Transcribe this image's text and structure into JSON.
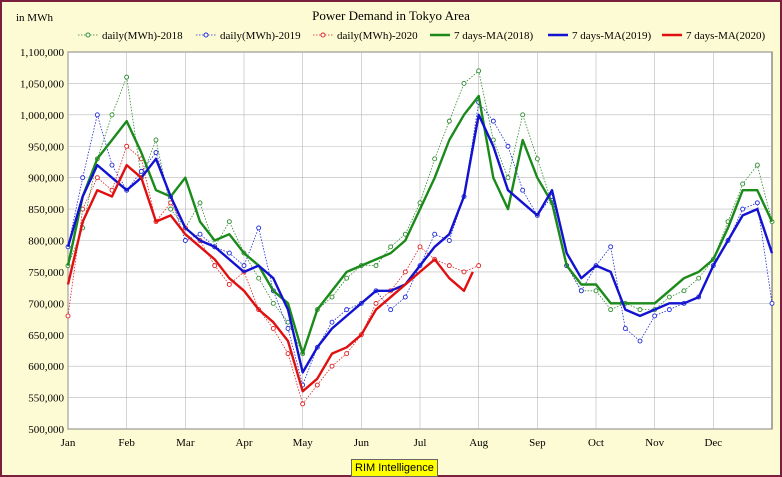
{
  "chart_data": {
    "type": "line",
    "title": "Power Demand in Tokyo Area",
    "ylabel": "in MWh",
    "xlabel": "",
    "ylim": [
      500000,
      1100000
    ],
    "yticks": [
      500000,
      550000,
      600000,
      650000,
      700000,
      750000,
      800000,
      850000,
      900000,
      950000,
      1000000,
      1050000,
      1100000
    ],
    "ytick_labels": [
      "500,000",
      "550,000",
      "600,000",
      "650,000",
      "700,000",
      "750,000",
      "800,000",
      "850,000",
      "900,000",
      "950,000",
      "1,000,000",
      "1,050,000",
      "1,100,000"
    ],
    "categories": [
      "Jan",
      "Feb",
      "Mar",
      "Apr",
      "May",
      "Jun",
      "Jul",
      "Aug",
      "Sep",
      "Oct",
      "Nov",
      "Dec"
    ],
    "grid": true,
    "legend_placement": "top",
    "series_note_x_unit": "month (1 = Jan 1, 13 = Dec 31)",
    "series": [
      {
        "name": "daily(MWh)-2018",
        "style": "daily",
        "color": "#2e8b2e",
        "x": [
          1.0,
          1.25,
          1.5,
          1.75,
          2.0,
          2.25,
          2.5,
          2.75,
          3.0,
          3.25,
          3.5,
          3.75,
          4.0,
          4.25,
          4.5,
          4.75,
          5.0,
          5.25,
          5.5,
          5.75,
          6.0,
          6.25,
          6.5,
          6.75,
          7.0,
          7.25,
          7.5,
          7.75,
          8.0,
          8.25,
          8.5,
          8.75,
          9.0,
          9.25,
          9.5,
          9.75,
          10.0,
          10.25,
          10.5,
          10.75,
          11.0,
          11.25,
          11.5,
          11.75,
          12.0,
          12.25,
          12.5,
          12.75,
          13.0
        ],
        "values": [
          760000,
          820000,
          930000,
          1000000,
          1060000,
          900000,
          960000,
          850000,
          820000,
          860000,
          790000,
          830000,
          780000,
          740000,
          700000,
          670000,
          620000,
          690000,
          710000,
          740000,
          760000,
          760000,
          790000,
          810000,
          860000,
          930000,
          990000,
          1050000,
          1070000,
          960000,
          900000,
          1000000,
          930000,
          860000,
          760000,
          720000,
          720000,
          690000,
          700000,
          690000,
          690000,
          710000,
          720000,
          740000,
          770000,
          830000,
          890000,
          920000,
          830000
        ]
      },
      {
        "name": "daily(MWh)-2019",
        "style": "daily",
        "color": "#1f2ad8",
        "x": [
          1.0,
          1.25,
          1.5,
          1.75,
          2.0,
          2.25,
          2.5,
          2.75,
          3.0,
          3.25,
          3.5,
          3.75,
          4.0,
          4.25,
          4.5,
          4.75,
          5.0,
          5.25,
          5.5,
          5.75,
          6.0,
          6.25,
          6.5,
          6.75,
          7.0,
          7.25,
          7.5,
          7.75,
          8.0,
          8.25,
          8.5,
          8.75,
          9.0,
          9.25,
          9.5,
          9.75,
          10.0,
          10.25,
          10.5,
          10.75,
          11.0,
          11.25,
          11.5,
          11.75,
          12.0,
          12.25,
          12.5,
          12.75,
          13.0
        ],
        "values": [
          790000,
          900000,
          1000000,
          920000,
          880000,
          910000,
          940000,
          870000,
          800000,
          810000,
          790000,
          780000,
          760000,
          820000,
          720000,
          660000,
          570000,
          630000,
          670000,
          690000,
          700000,
          720000,
          690000,
          710000,
          760000,
          810000,
          800000,
          870000,
          1020000,
          990000,
          950000,
          880000,
          840000,
          870000,
          760000,
          720000,
          760000,
          790000,
          660000,
          640000,
          680000,
          690000,
          700000,
          710000,
          760000,
          800000,
          850000,
          860000,
          700000
        ]
      },
      {
        "name": "daily(MWh)-2020",
        "style": "daily",
        "color": "#e02020",
        "x": [
          1.0,
          1.25,
          1.5,
          1.75,
          2.0,
          2.25,
          2.5,
          2.75,
          3.0,
          3.25,
          3.5,
          3.75,
          4.0,
          4.25,
          4.5,
          4.75,
          5.0,
          5.25,
          5.5,
          5.75,
          6.0,
          6.25,
          6.5,
          6.75,
          7.0,
          7.25,
          7.5,
          7.75,
          8.0
        ],
        "values": [
          680000,
          850000,
          900000,
          880000,
          950000,
          930000,
          830000,
          860000,
          820000,
          800000,
          760000,
          730000,
          750000,
          690000,
          660000,
          620000,
          540000,
          570000,
          600000,
          620000,
          650000,
          700000,
          720000,
          750000,
          790000,
          770000,
          760000,
          750000,
          760000
        ]
      },
      {
        "name": "7 days-MA(2018)",
        "style": "ma",
        "color": "#1a8a1a",
        "x": [
          1.0,
          1.25,
          1.5,
          1.75,
          2.0,
          2.25,
          2.5,
          2.75,
          3.0,
          3.25,
          3.5,
          3.75,
          4.0,
          4.25,
          4.5,
          4.75,
          5.0,
          5.25,
          5.5,
          5.75,
          6.0,
          6.25,
          6.5,
          6.75,
          7.0,
          7.25,
          7.5,
          7.75,
          8.0,
          8.25,
          8.5,
          8.75,
          9.0,
          9.25,
          9.5,
          9.75,
          10.0,
          10.25,
          10.5,
          10.75,
          11.0,
          11.25,
          11.5,
          11.75,
          12.0,
          12.25,
          12.5,
          12.75,
          13.0
        ],
        "values": [
          760000,
          870000,
          930000,
          960000,
          990000,
          940000,
          880000,
          870000,
          900000,
          830000,
          800000,
          810000,
          780000,
          760000,
          720000,
          700000,
          620000,
          690000,
          720000,
          750000,
          760000,
          770000,
          780000,
          800000,
          850000,
          900000,
          960000,
          1000000,
          1030000,
          900000,
          850000,
          960000,
          900000,
          860000,
          760000,
          730000,
          730000,
          700000,
          700000,
          700000,
          700000,
          720000,
          740000,
          750000,
          770000,
          820000,
          880000,
          880000,
          830000
        ]
      },
      {
        "name": "7 days-MA(2019)",
        "style": "ma",
        "color": "#1212d0",
        "x": [
          1.0,
          1.25,
          1.5,
          1.75,
          2.0,
          2.25,
          2.5,
          2.75,
          3.0,
          3.25,
          3.5,
          3.75,
          4.0,
          4.25,
          4.5,
          4.75,
          5.0,
          5.25,
          5.5,
          5.75,
          6.0,
          6.25,
          6.5,
          6.75,
          7.0,
          7.25,
          7.5,
          7.75,
          8.0,
          8.25,
          8.5,
          8.75,
          9.0,
          9.25,
          9.5,
          9.75,
          10.0,
          10.25,
          10.5,
          10.75,
          11.0,
          11.25,
          11.5,
          11.75,
          12.0,
          12.25,
          12.5,
          12.75,
          13.0
        ],
        "values": [
          790000,
          870000,
          920000,
          900000,
          880000,
          900000,
          930000,
          870000,
          820000,
          800000,
          790000,
          770000,
          750000,
          760000,
          740000,
          690000,
          590000,
          630000,
          660000,
          680000,
          700000,
          720000,
          720000,
          730000,
          760000,
          790000,
          810000,
          870000,
          1000000,
          950000,
          880000,
          860000,
          840000,
          880000,
          780000,
          740000,
          760000,
          750000,
          690000,
          680000,
          690000,
          700000,
          700000,
          710000,
          760000,
          800000,
          840000,
          850000,
          780000
        ]
      },
      {
        "name": "7 days-MA(2020)",
        "style": "ma",
        "color": "#e01010",
        "x": [
          1.0,
          1.25,
          1.5,
          1.75,
          2.0,
          2.25,
          2.5,
          2.75,
          3.0,
          3.25,
          3.5,
          3.75,
          4.0,
          4.25,
          4.5,
          4.75,
          5.0,
          5.25,
          5.5,
          5.75,
          6.0,
          6.25,
          6.5,
          6.75,
          7.0,
          7.25,
          7.5,
          7.75,
          7.9
        ],
        "values": [
          730000,
          830000,
          880000,
          870000,
          920000,
          900000,
          830000,
          840000,
          810000,
          790000,
          770000,
          740000,
          720000,
          690000,
          670000,
          640000,
          560000,
          580000,
          620000,
          630000,
          650000,
          690000,
          710000,
          730000,
          750000,
          770000,
          740000,
          720000,
          750000
        ]
      }
    ]
  },
  "footer": {
    "credit": "RIM Intelligence"
  }
}
